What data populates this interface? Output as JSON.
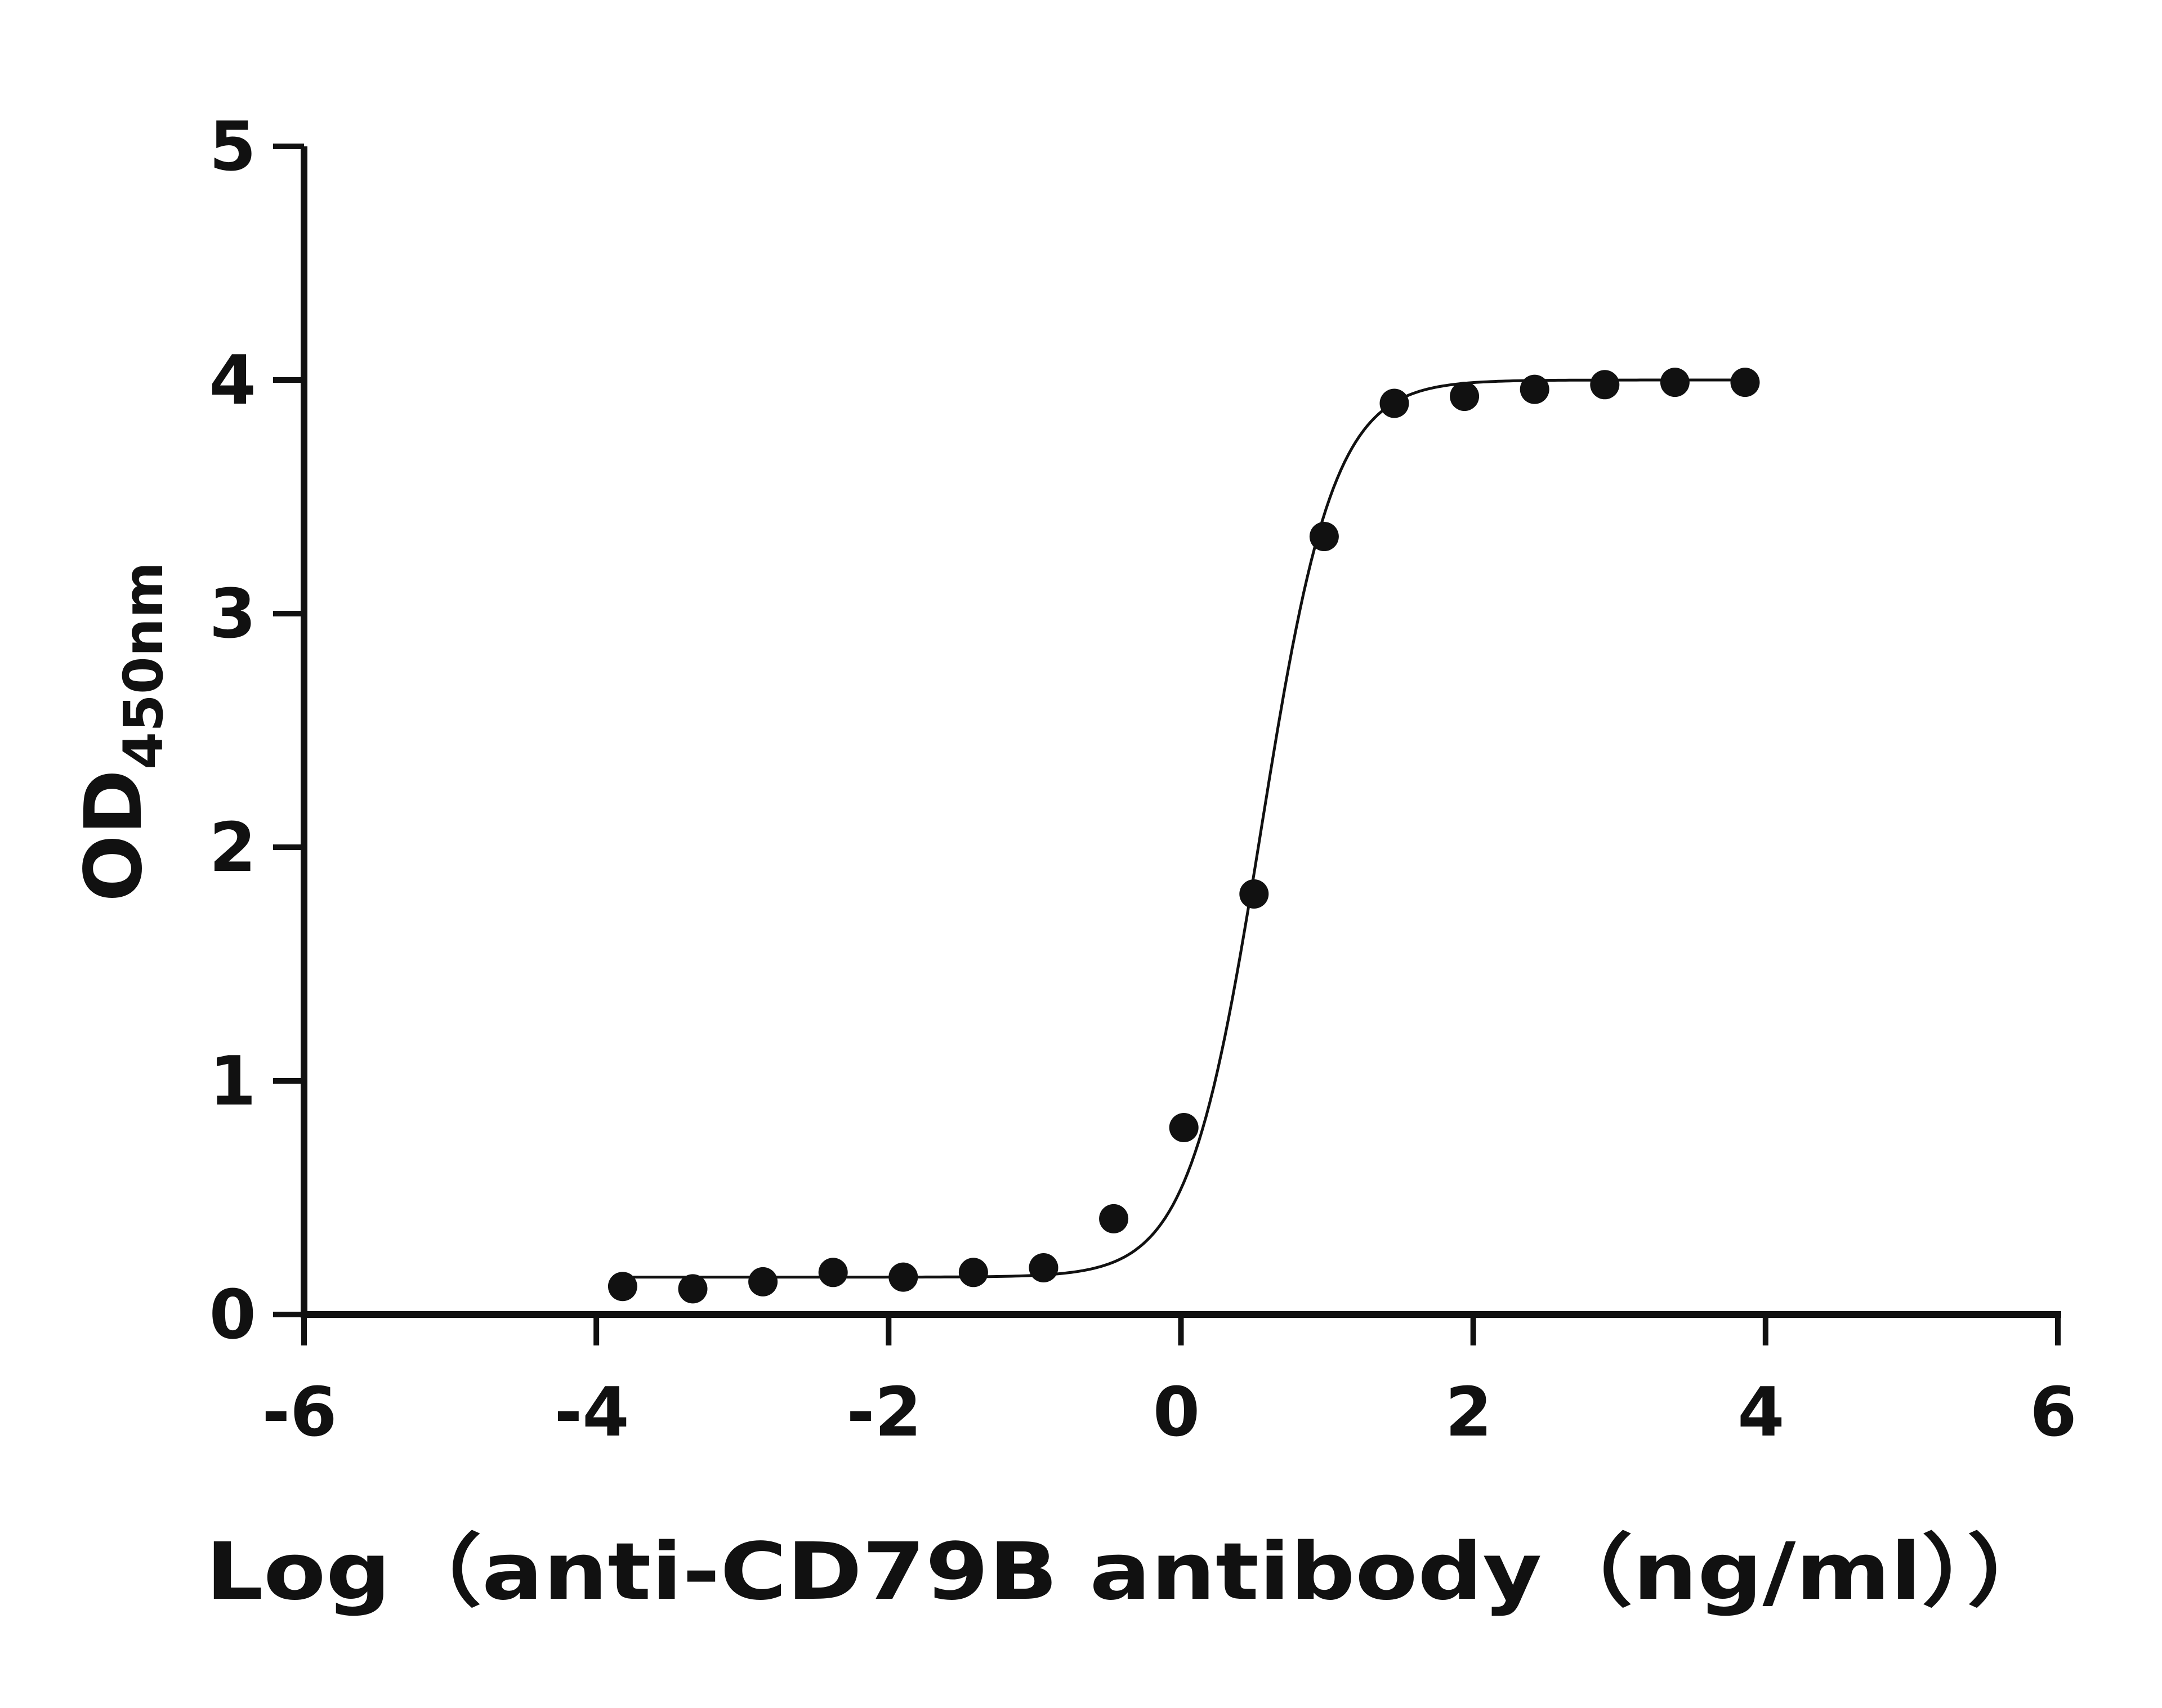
{
  "chart_data": {
    "type": "scatter",
    "xlabel": "Log（anti-CD79B antibody（ng/ml））",
    "ylabel_main": "OD",
    "ylabel_sub": "450nm",
    "xlim": [
      -6,
      6
    ],
    "ylim": [
      0,
      5
    ],
    "xticks": [
      "-6",
      "-4",
      "-2",
      "0",
      "2",
      "4",
      "6"
    ],
    "yticks": [
      "0",
      "1",
      "2",
      "3",
      "4",
      "5"
    ],
    "grid": false,
    "series": [
      {
        "x": [
          -3.82,
          -3.34,
          -2.86,
          -2.38,
          -1.9,
          -1.42,
          -0.94,
          -0.46,
          0.02,
          0.5,
          0.98,
          1.46,
          1.94,
          2.42,
          2.9,
          3.38,
          3.86
        ],
        "y": [
          0.12,
          0.11,
          0.14,
          0.18,
          0.16,
          0.18,
          0.2,
          0.41,
          0.8,
          1.8,
          3.33,
          3.9,
          3.93,
          3.96,
          3.98,
          3.99,
          3.99
        ]
      }
    ],
    "fit": {
      "model": "4PL",
      "bottom": 0.16,
      "top": 4.0,
      "logEC50": 0.55,
      "hill": 1.75,
      "x_start": -3.82,
      "x_end": 3.86
    },
    "colors": {
      "ink": "#111111",
      "background": "#ffffff"
    }
  }
}
